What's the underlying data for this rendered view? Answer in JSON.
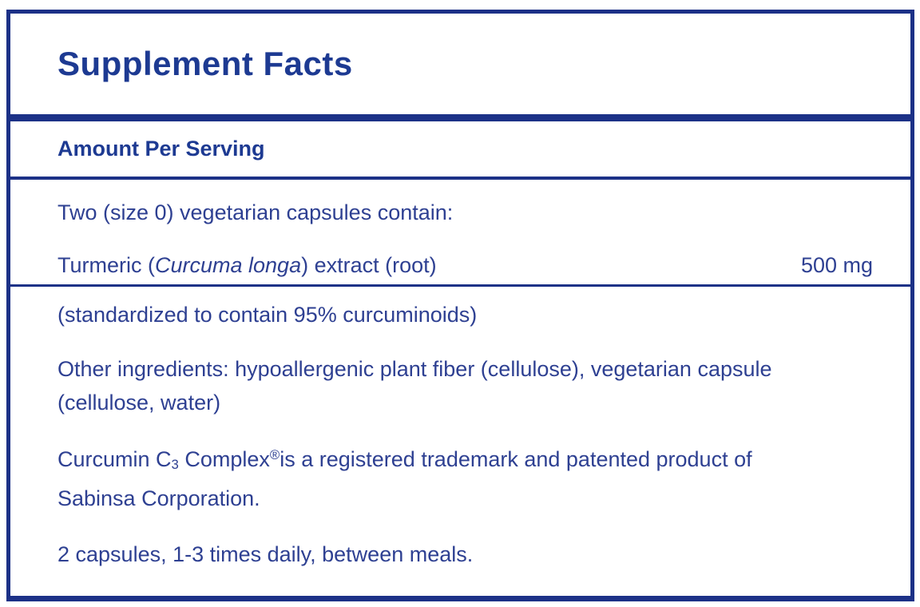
{
  "label": {
    "title": "Supplement Facts",
    "column_header": "Amount Per Serving",
    "serving_line": "Two (size 0) vegetarian capsules contain:",
    "ingredient": {
      "name_part1": "Turmeric (",
      "name_species": "Curcuma longa",
      "name_part2": ") extract (root)",
      "amount": "500 mg",
      "standardization": "(standardized to contain 95% curcuminoids)"
    },
    "other_ingredients": {
      "line1": "Other ingredients: hypoallergenic plant fiber (cellulose), vegetarian capsule",
      "line2": "(cellulose, water)"
    },
    "trademark": {
      "part1": "Curcumin C",
      "subscript": "3",
      "part2": " Complex",
      "superscript": "®",
      "part3": "is a registered trademark and patented product of",
      "line2": "Sabinsa Corporation."
    },
    "dosage": "2 capsules, 1-3 times daily, between meals.",
    "colors": {
      "line": "#1c3187",
      "heading": "#1d3a92",
      "body_text": "#2e4092"
    }
  }
}
